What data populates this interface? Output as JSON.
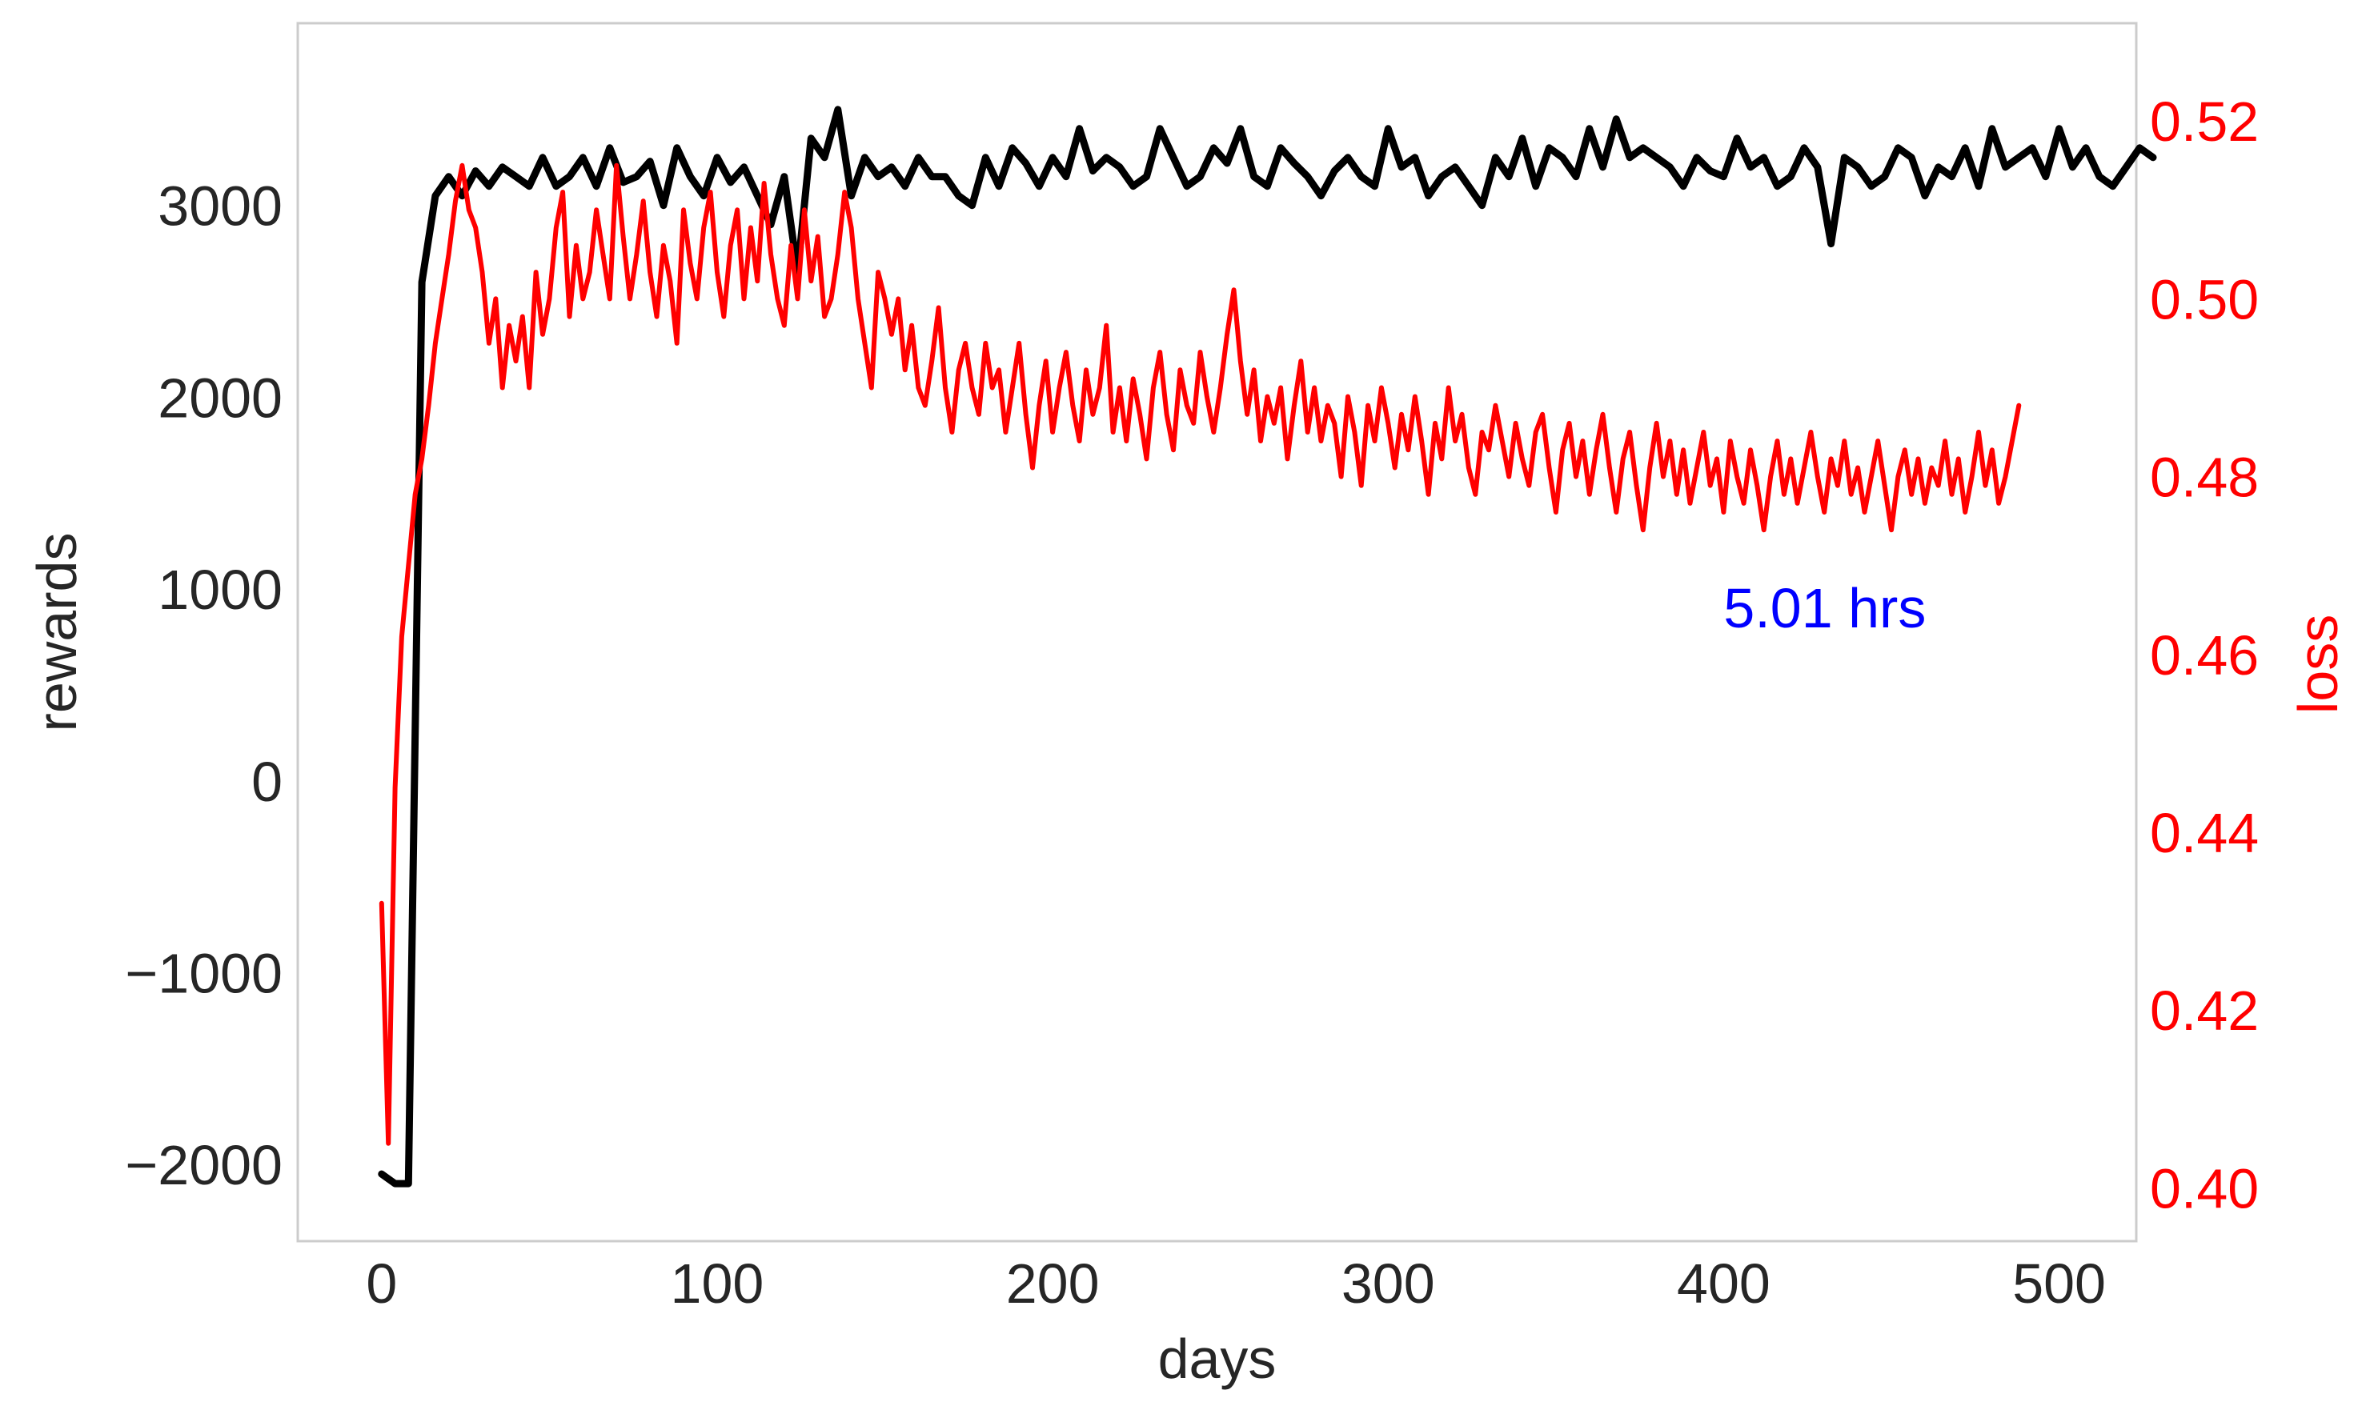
{
  "chart_data": {
    "type": "line",
    "title": "",
    "xlabel": "days",
    "ylabel": "rewards",
    "ylabel_right": "loss",
    "xlim": [
      -25,
      523
    ],
    "ylim": [
      -2400,
      3950
    ],
    "ylim_right": [
      0.394,
      0.531
    ],
    "x_ticks": [
      0,
      100,
      200,
      300,
      400,
      500
    ],
    "y_ticks": [
      -2000,
      -1000,
      0,
      1000,
      2000,
      3000
    ],
    "y_ticks_right": [
      0.4,
      0.42,
      0.44,
      0.46,
      0.48,
      0.5,
      0.52
    ],
    "grid": false,
    "colors": {
      "rewards": "#000000",
      "loss": "#ff0000",
      "annotation": "#0000ff",
      "frame": "#cccccc",
      "text": "#262626"
    },
    "annotation": {
      "text": "5.01 hrs",
      "x": 400,
      "y": 800
    },
    "series": [
      {
        "axis": "left",
        "color": "#000000",
        "x_start": 0,
        "x_step": 4,
        "values": [
          -2050,
          -2100,
          -2100,
          2600,
          3050,
          3150,
          3050,
          3180,
          3100,
          3200,
          3150,
          3100,
          3250,
          3100,
          3150,
          3250,
          3100,
          3300,
          3120,
          3150,
          3230,
          3000,
          3300,
          3150,
          3050,
          3250,
          3120,
          3200,
          3050,
          2900,
          3150,
          2650,
          3350,
          3250,
          3500,
          3050,
          3250,
          3150,
          3200,
          3100,
          3250,
          3150,
          3150,
          3050,
          3000,
          3250,
          3100,
          3300,
          3220,
          3100,
          3250,
          3150,
          3400,
          3180,
          3250,
          3200,
          3100,
          3150,
          3400,
          3250,
          3100,
          3150,
          3300,
          3220,
          3400,
          3150,
          3100,
          3300,
          3220,
          3150,
          3050,
          3180,
          3250,
          3150,
          3100,
          3400,
          3200,
          3250,
          3050,
          3150,
          3200,
          3100,
          3000,
          3250,
          3150,
          3350,
          3100,
          3300,
          3250,
          3150,
          3400,
          3200,
          3450,
          3250,
          3300,
          3250,
          3200,
          3100,
          3250,
          3180,
          3150,
          3350,
          3200,
          3250,
          3100,
          3150,
          3300,
          3200,
          2800,
          3250,
          3200,
          3100,
          3150,
          3300,
          3250,
          3050,
          3200,
          3150,
          3300,
          3100,
          3400,
          3200,
          3250,
          3300,
          3150,
          3400,
          3200,
          3300,
          3150,
          3100,
          3200,
          3300,
          3250
        ]
      },
      {
        "axis": "right",
        "color": "#ff0000",
        "x_start": 0,
        "x_step": 2,
        "values": [
          0.432,
          0.405,
          0.445,
          0.462,
          0.47,
          0.478,
          0.482,
          0.488,
          0.495,
          0.5,
          0.505,
          0.511,
          0.515,
          0.51,
          0.508,
          0.503,
          0.495,
          0.5,
          0.49,
          0.497,
          0.493,
          0.498,
          0.49,
          0.503,
          0.496,
          0.5,
          0.508,
          0.512,
          0.498,
          0.506,
          0.5,
          0.503,
          0.51,
          0.505,
          0.5,
          0.515,
          0.507,
          0.5,
          0.505,
          0.511,
          0.503,
          0.498,
          0.506,
          0.502,
          0.495,
          0.51,
          0.504,
          0.5,
          0.508,
          0.512,
          0.503,
          0.498,
          0.506,
          0.51,
          0.5,
          0.508,
          0.502,
          0.513,
          0.505,
          0.5,
          0.497,
          0.506,
          0.5,
          0.51,
          0.502,
          0.507,
          0.498,
          0.5,
          0.505,
          0.512,
          0.508,
          0.5,
          0.495,
          0.49,
          0.503,
          0.5,
          0.496,
          0.5,
          0.492,
          0.497,
          0.49,
          0.488,
          0.493,
          0.499,
          0.49,
          0.485,
          0.492,
          0.495,
          0.49,
          0.487,
          0.495,
          0.49,
          0.492,
          0.485,
          0.49,
          0.495,
          0.487,
          0.481,
          0.488,
          0.493,
          0.485,
          0.49,
          0.494,
          0.488,
          0.484,
          0.492,
          0.487,
          0.49,
          0.497,
          0.485,
          0.49,
          0.484,
          0.491,
          0.487,
          0.482,
          0.49,
          0.494,
          0.487,
          0.483,
          0.492,
          0.488,
          0.486,
          0.494,
          0.489,
          0.485,
          0.49,
          0.496,
          0.501,
          0.493,
          0.487,
          0.492,
          0.484,
          0.489,
          0.486,
          0.49,
          0.482,
          0.488,
          0.493,
          0.485,
          0.49,
          0.484,
          0.488,
          0.486,
          0.48,
          0.489,
          0.485,
          0.479,
          0.488,
          0.484,
          0.49,
          0.486,
          0.481,
          0.487,
          0.483,
          0.489,
          0.484,
          0.478,
          0.486,
          0.482,
          0.49,
          0.484,
          0.487,
          0.481,
          0.478,
          0.485,
          0.483,
          0.488,
          0.484,
          0.48,
          0.486,
          0.482,
          0.479,
          0.485,
          0.487,
          0.481,
          0.476,
          0.483,
          0.486,
          0.48,
          0.484,
          0.478,
          0.483,
          0.487,
          0.481,
          0.476,
          0.482,
          0.485,
          0.479,
          0.474,
          0.481,
          0.486,
          0.48,
          0.484,
          0.478,
          0.483,
          0.477,
          0.481,
          0.485,
          0.479,
          0.482,
          0.476,
          0.484,
          0.48,
          0.477,
          0.483,
          0.479,
          0.474,
          0.48,
          0.484,
          0.478,
          0.482,
          0.477,
          0.481,
          0.485,
          0.48,
          0.476,
          0.482,
          0.479,
          0.484,
          0.478,
          0.481,
          0.476,
          0.48,
          0.484,
          0.479,
          0.474,
          0.48,
          0.483,
          0.478,
          0.482,
          0.477,
          0.481,
          0.479,
          0.484,
          0.478,
          0.482,
          0.476,
          0.48,
          0.485,
          0.479,
          0.483,
          0.477,
          0.48,
          0.484,
          0.488
        ]
      }
    ]
  }
}
